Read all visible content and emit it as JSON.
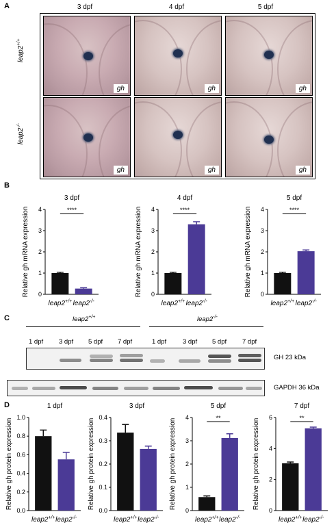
{
  "panel_a": {
    "label": "A",
    "columns": [
      "3 dpf",
      "4 dpf",
      "5 dpf"
    ],
    "rows": [
      {
        "base": "leap2",
        "sup": "+/+"
      },
      {
        "base": "leap2",
        "sup": "-/-"
      }
    ],
    "image_tag": "gh"
  },
  "panel_b": {
    "label": "B"
  },
  "panel_c": {
    "label": "C",
    "groups": [
      {
        "base": "leap2",
        "sup": "+/+"
      },
      {
        "base": "leap2",
        "sup": "-/-"
      }
    ],
    "lanes": [
      "1 dpf",
      "3 dpf",
      "5 dpf",
      "7 dpf",
      "1 dpf",
      "3 dpf",
      "5 dpf",
      "7 dpf"
    ],
    "blot_gh": "GH 23 kDa",
    "blot_gapdh": "GAPDH  36 kDa"
  },
  "panel_d": {
    "label": "D"
  },
  "colors": {
    "wt": "#111111",
    "ko": "#4b3a96"
  },
  "chart_data": [
    {
      "type": "bar",
      "title": "3 dpf",
      "ylabel": "Relative gh mRNA expression",
      "categories": [
        "leap2+/+",
        "leap2-/-"
      ],
      "values": [
        1.0,
        0.27
      ],
      "errors": [
        0.04,
        0.04
      ],
      "ylim": [
        0,
        4
      ],
      "yticks": [
        0,
        1,
        2,
        3,
        4
      ],
      "sig": "****"
    },
    {
      "type": "bar",
      "title": "4 dpf",
      "ylabel": "Relative gh mRNA expression",
      "categories": [
        "leap2+/+",
        "leap2-/-"
      ],
      "values": [
        1.0,
        3.3
      ],
      "errors": [
        0.04,
        0.12
      ],
      "ylim": [
        0,
        4
      ],
      "yticks": [
        0,
        1,
        2,
        3,
        4
      ],
      "sig": "****"
    },
    {
      "type": "bar",
      "title": "5 dpf",
      "ylabel": "Relative gh mRNA expression",
      "categories": [
        "leap2+/+",
        "leap2-/-"
      ],
      "values": [
        1.0,
        2.03
      ],
      "errors": [
        0.04,
        0.06
      ],
      "ylim": [
        0,
        4
      ],
      "yticks": [
        0,
        1,
        2,
        3,
        4
      ],
      "sig": "****"
    },
    {
      "type": "bar",
      "title": "1 dpf",
      "ylabel": "Relative gh protein expression",
      "categories": [
        "leap2+/+",
        "leap2-/-"
      ],
      "values": [
        0.8,
        0.55
      ],
      "errors": [
        0.065,
        0.075
      ],
      "ylim": [
        0,
        1.0
      ],
      "yticks": [
        0.0,
        0.2,
        0.4,
        0.6,
        0.8,
        1.0
      ],
      "yticklabels": [
        "0.0",
        "0.2",
        "0.4",
        "0.6",
        "0.8",
        "1.0"
      ],
      "sig": ""
    },
    {
      "type": "bar",
      "title": "3 dpf",
      "ylabel": "Relative gh protein expression",
      "categories": [
        "leap2+/+",
        "leap2-/-"
      ],
      "values": [
        0.335,
        0.265
      ],
      "errors": [
        0.035,
        0.012
      ],
      "ylim": [
        0,
        0.4
      ],
      "yticks": [
        0.0,
        0.1,
        0.2,
        0.3,
        0.4
      ],
      "yticklabels": [
        "0.0",
        "0.1",
        "0.2",
        "0.3",
        "0.4"
      ],
      "sig": ""
    },
    {
      "type": "bar",
      "title": "5 dpf",
      "ylabel": "Relative gh protein expression",
      "categories": [
        "leap2+/+",
        "leap2-/-"
      ],
      "values": [
        0.58,
        3.12
      ],
      "errors": [
        0.05,
        0.18
      ],
      "ylim": [
        0,
        4
      ],
      "yticks": [
        0,
        1,
        2,
        3,
        4
      ],
      "yticklabels": [
        "0",
        "1",
        "2",
        "3",
        "4"
      ],
      "sig": "**"
    },
    {
      "type": "bar",
      "title": "7 dpf",
      "ylabel": "Relative gh protein expression",
      "categories": [
        "leap2+/+",
        "leap2-/-"
      ],
      "values": [
        3.05,
        5.3
      ],
      "errors": [
        0.08,
        0.08
      ],
      "ylim": [
        0,
        6
      ],
      "yticks": [
        0,
        2,
        4,
        6
      ],
      "yticklabels": [
        "0",
        "2",
        "4",
        "6"
      ],
      "sig": "**"
    }
  ]
}
